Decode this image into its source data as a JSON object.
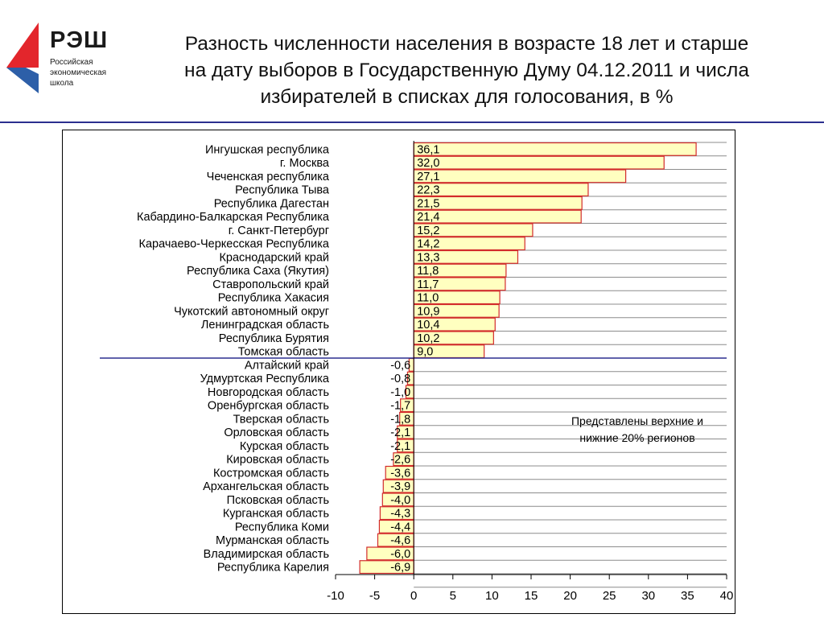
{
  "logo": {
    "name": "РЭШ",
    "line1": "Российская",
    "line2": "экономическая",
    "line3": "школа",
    "colors": {
      "red": "#e3262c",
      "blue": "#2d5fa8"
    }
  },
  "title": {
    "line1": "Разность численности населения в возрасте 18 лет и старше",
    "line2": "на дату выборов в  Государственную Думу 04.12.2011 и числа",
    "line3": "избирателей в списках для голосования, в %"
  },
  "note": {
    "line1": "Представлены верхние и",
    "line2": "нижние 20% регионов"
  },
  "chart_data": {
    "type": "bar",
    "orientation": "horizontal",
    "categories": [
      "Ингушская республика",
      "г. Москва",
      "Чеченская республика",
      "Республика Тыва",
      "Республика Дагестан",
      "Кабардино-Балкарская Республика",
      "г. Санкт-Петербург",
      "Карачаево-Черкесская Республика",
      "Краснодарский край",
      "Республика Саха (Якутия)",
      "Ставропольский край",
      "Республика Хакасия",
      "Чукотский автономный округ",
      "Ленинградская область",
      "Республика Бурятия",
      "Томская область",
      "Алтайский край",
      "Удмуртская Республика",
      "Новгородская область",
      "Оренбургская область",
      "Тверская область",
      "Орловская область",
      "Курская область",
      "Кировская область",
      "Костромская область",
      "Архангельская область",
      "Псковская область",
      "Курганская область",
      "Республика Коми",
      "Мурманская область",
      "Владимирская область",
      "Республика Карелия"
    ],
    "values": [
      36.1,
      32.0,
      27.1,
      22.3,
      21.5,
      21.4,
      15.2,
      14.2,
      13.3,
      11.8,
      11.7,
      11.0,
      10.9,
      10.4,
      10.2,
      9.0,
      -0.6,
      -0.8,
      -1.0,
      -1.7,
      -1.8,
      -2.1,
      -2.1,
      -2.6,
      -3.6,
      -3.9,
      -4.0,
      -4.3,
      -4.4,
      -4.6,
      -6.0,
      -6.9
    ],
    "value_labels": [
      "36,1",
      "32,0",
      "27,1",
      "22,3",
      "21,5",
      "21,4",
      "15,2",
      "14,2",
      "13,3",
      "11,8",
      "11,7",
      "11,0",
      "10,9",
      "10,4",
      "10,2",
      "9,0",
      "-0,6",
      "-0,8",
      "-1,0",
      "-1,7",
      "-1,8",
      "-2,1",
      "-2,1",
      "-2,6",
      "-3,6",
      "-3,9",
      "-4,0",
      "-4,3",
      "-4,4",
      "-4,6",
      "-6,0",
      "-6,9"
    ],
    "xlim": [
      -10,
      40
    ],
    "xticks": [
      -10,
      -5,
      0,
      5,
      10,
      15,
      20,
      25,
      30,
      35,
      40
    ],
    "separator_after_index": 15,
    "grid": true,
    "colors": {
      "bar_fill": "#ffffc0",
      "bar_edge": "#d22b2b",
      "separator": "#2b2f8f",
      "grid": "#8c8c8c"
    }
  }
}
